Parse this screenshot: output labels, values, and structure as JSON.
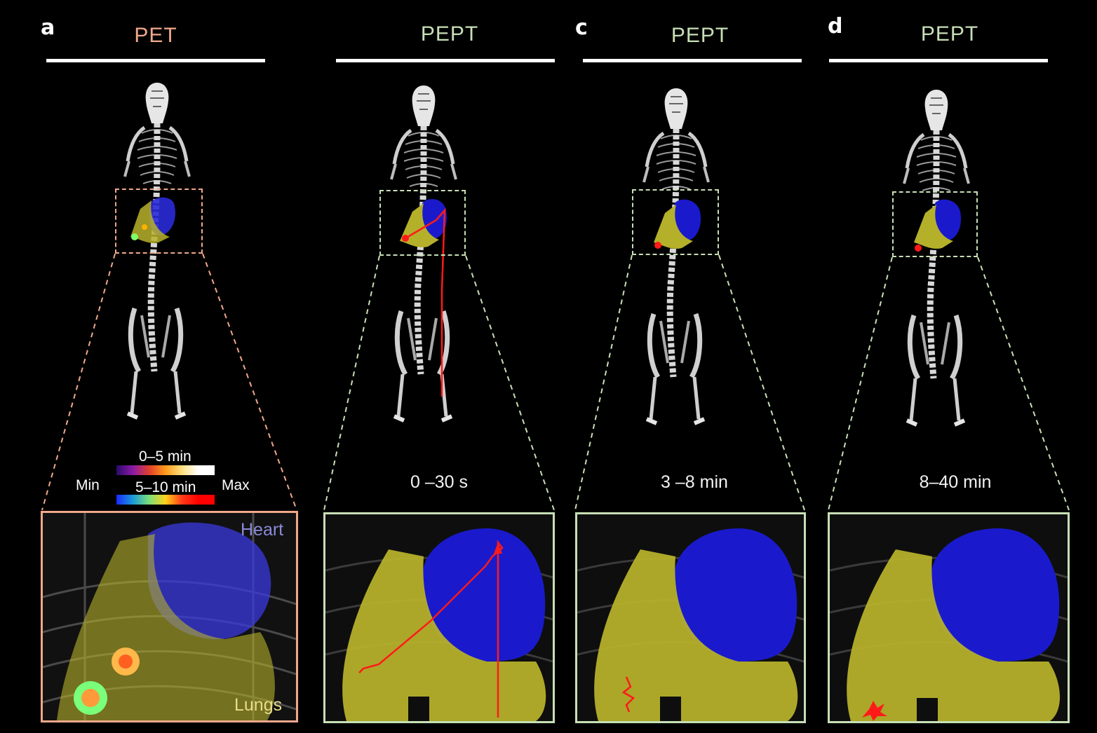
{
  "panels": [
    {
      "letter": "a",
      "title": "PET",
      "title_color": "#f0a88a"
    },
    {
      "letter": "",
      "title": "PEPT",
      "title_color": "#c7dfb5",
      "time": "0 –30 s"
    },
    {
      "letter": "c",
      "title": "PEPT",
      "title_color": "#c7dfb5",
      "time": "3 –8 min"
    },
    {
      "letter": "d",
      "title": "PEPT",
      "title_color": "#c7dfb5",
      "time": "8–40 min"
    }
  ],
  "legend": {
    "row1": "0–5 min",
    "row2": "5–10 min",
    "min": "Min",
    "max": "Max"
  },
  "labels": {
    "heart": "Heart",
    "lungs": "Lungs"
  },
  "colors": {
    "pet_accent": "#f0a88a",
    "pept_accent": "#c7dfb5",
    "heart": "#1a1acc",
    "lungs": "#b5b02a",
    "track": "#ff1a1a"
  }
}
